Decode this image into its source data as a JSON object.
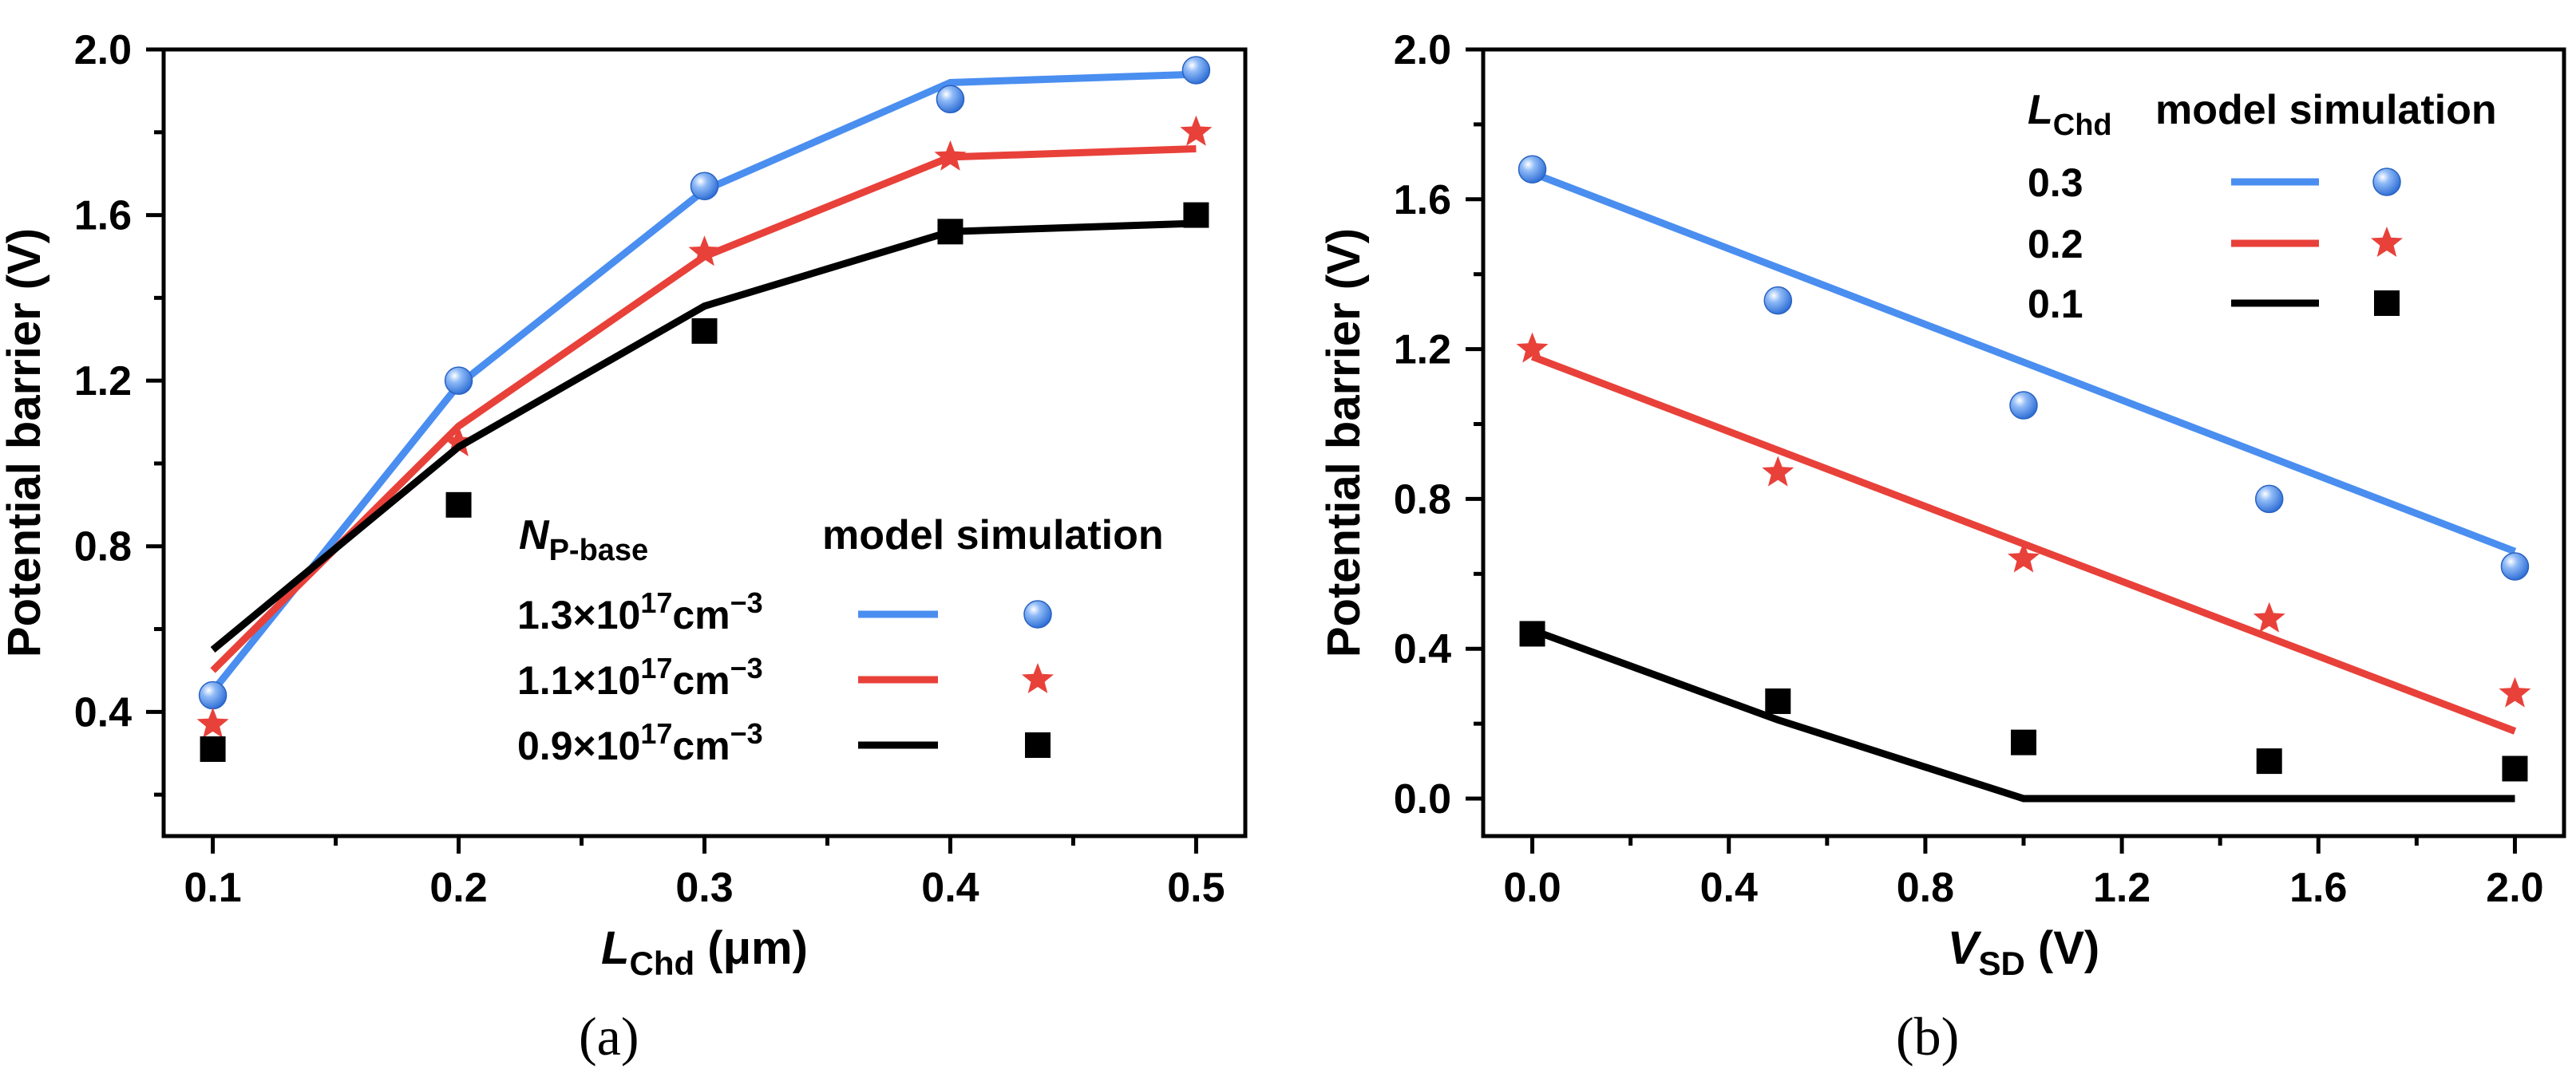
{
  "chart_data": [
    {
      "type": "line",
      "panel_label": "(a)",
      "xlabel": {
        "main": "L",
        "sub": "Chd",
        "rest": " (μm)"
      },
      "ylabel": "Potential barrier (V)",
      "xlim": [
        0.08,
        0.52
      ],
      "ylim": [
        0.1,
        2.0
      ],
      "xticks": [
        0.1,
        0.2,
        0.3,
        0.4,
        0.5
      ],
      "xtick_labels": [
        "0.1",
        "0.2",
        "0.3",
        "0.4",
        "0.5"
      ],
      "yticks": [
        0.4,
        0.8,
        1.2,
        1.6,
        2.0
      ],
      "ytick_labels": [
        "0.4",
        "0.8",
        "1.2",
        "1.6",
        "2.0"
      ],
      "legend": {
        "title_main": "N",
        "title_sub": "P-base",
        "header": "model simulation",
        "position": "bottom-right"
      },
      "series": [
        {
          "name": "1.3×10¹⁷cm⁻³",
          "label_parts": [
            "1.3×10",
            "17",
            "cm",
            "−3"
          ],
          "color": "#4a8ef0",
          "marker": "sphere",
          "model": {
            "x": [
              0.1,
              0.2,
              0.3,
              0.4,
              0.5
            ],
            "y": [
              0.45,
              1.19,
              1.66,
              1.92,
              1.94
            ]
          },
          "simulation": {
            "x": [
              0.1,
              0.2,
              0.3,
              0.4,
              0.5
            ],
            "y": [
              0.44,
              1.2,
              1.67,
              1.88,
              1.95
            ]
          }
        },
        {
          "name": "1.1×10¹⁷cm⁻³",
          "label_parts": [
            "1.1×10",
            "17",
            "cm",
            "−3"
          ],
          "color": "#e8413a",
          "marker": "star",
          "model": {
            "x": [
              0.1,
              0.2,
              0.3,
              0.4,
              0.5
            ],
            "y": [
              0.5,
              1.09,
              1.5,
              1.74,
              1.76
            ]
          },
          "simulation": {
            "x": [
              0.1,
              0.2,
              0.3,
              0.4,
              0.5
            ],
            "y": [
              0.37,
              1.05,
              1.51,
              1.74,
              1.8
            ]
          }
        },
        {
          "name": "0.9×10¹⁷cm⁻³",
          "label_parts": [
            "0.9×10",
            "17",
            "cm",
            "−3"
          ],
          "color": "#000000",
          "marker": "square",
          "model": {
            "x": [
              0.1,
              0.2,
              0.3,
              0.4,
              0.5
            ],
            "y": [
              0.55,
              1.04,
              1.38,
              1.56,
              1.58
            ]
          },
          "simulation": {
            "x": [
              0.1,
              0.2,
              0.3,
              0.4,
              0.5
            ],
            "y": [
              0.31,
              0.9,
              1.32,
              1.56,
              1.6
            ]
          }
        }
      ]
    },
    {
      "type": "line",
      "panel_label": "(b)",
      "xlabel": {
        "main": "V",
        "sub": "SD",
        "rest": " (V)"
      },
      "ylabel": "Potential barrier (V)",
      "xlim": [
        -0.1,
        2.1
      ],
      "ylim": [
        -0.1,
        2.0
      ],
      "xticks": [
        0.0,
        0.4,
        0.8,
        1.2,
        1.6,
        2.0
      ],
      "xtick_labels": [
        "0.0",
        "0.4",
        "0.8",
        "1.2",
        "1.6",
        "2.0"
      ],
      "yticks": [
        0.0,
        0.4,
        0.8,
        1.2,
        1.6,
        2.0
      ],
      "ytick_labels": [
        "0.0",
        "0.4",
        "0.8",
        "1.2",
        "1.6",
        "2.0"
      ],
      "legend": {
        "title_main": "L",
        "title_sub": "Chd",
        "header": "model simulation",
        "position": "top-right"
      },
      "series": [
        {
          "name": "0.3",
          "label_parts": [
            "0.3"
          ],
          "color": "#4a8ef0",
          "marker": "sphere",
          "model": {
            "x": [
              0.0,
              2.0
            ],
            "y": [
              1.67,
              0.66
            ]
          },
          "simulation": {
            "x": [
              0.0,
              0.5,
              1.0,
              1.5,
              2.0
            ],
            "y": [
              1.68,
              1.33,
              1.05,
              0.8,
              0.62
            ]
          }
        },
        {
          "name": "0.2",
          "label_parts": [
            "0.2"
          ],
          "color": "#e8413a",
          "marker": "star",
          "model": {
            "x": [
              0.0,
              2.0
            ],
            "y": [
              1.18,
              0.18
            ]
          },
          "simulation": {
            "x": [
              0.0,
              0.5,
              1.0,
              1.5,
              2.0
            ],
            "y": [
              1.2,
              0.87,
              0.64,
              0.48,
              0.28
            ]
          }
        },
        {
          "name": "0.1",
          "label_parts": [
            "0.1"
          ],
          "color": "#000000",
          "marker": "square",
          "model": {
            "x": [
              0.0,
              0.5,
              1.0,
              2.0
            ],
            "y": [
              0.45,
              0.21,
              0.0,
              0.0
            ]
          },
          "simulation": {
            "x": [
              0.0,
              0.5,
              1.0,
              1.5,
              2.0
            ],
            "y": [
              0.44,
              0.26,
              0.15,
              0.1,
              0.08
            ]
          }
        }
      ]
    }
  ]
}
